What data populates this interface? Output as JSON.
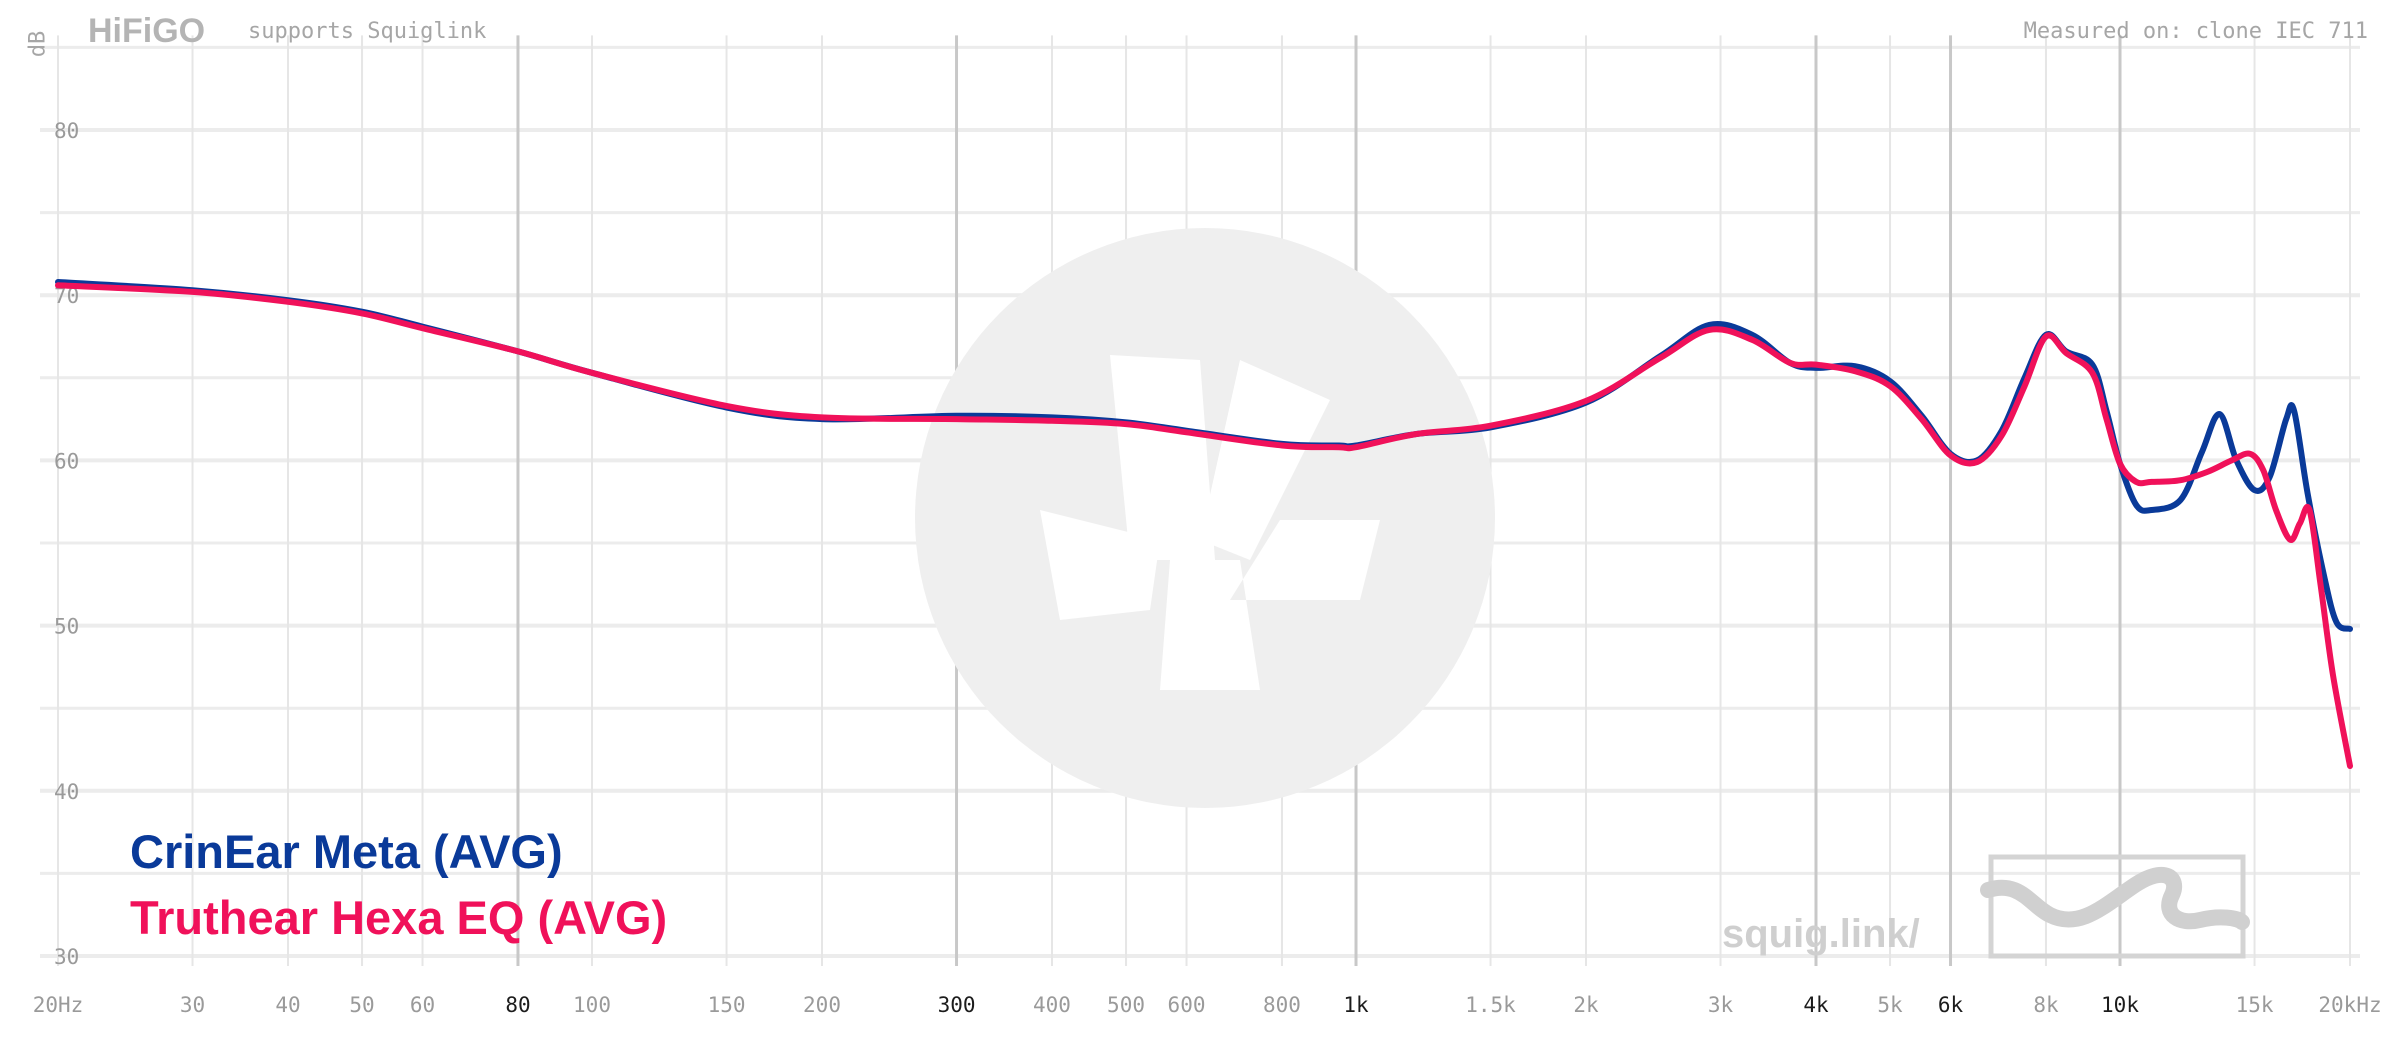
{
  "header": {
    "logo_text": "HiFiGO",
    "tagline": "supports Squiglink",
    "measured_on": "Measured on: clone IEC 711"
  },
  "watermark": {
    "text": "squig.link/"
  },
  "colors": {
    "series_1": "#0a3a99",
    "series_2": "#f0115a",
    "grid": "#e6e6e6",
    "grid_major": "#c8c8c8",
    "watermark": "#efefef"
  },
  "chart_data": {
    "type": "line",
    "x_scale": "log",
    "xlim": [
      20,
      20000
    ],
    "ylim": [
      30,
      85
    ],
    "ylabel": "dB",
    "grid": true,
    "legend_position": "bottom-left",
    "y_ticks": [
      {
        "value": 30,
        "label": "30"
      },
      {
        "value": 40,
        "label": "40"
      },
      {
        "value": 50,
        "label": "50"
      },
      {
        "value": 60,
        "label": "60"
      },
      {
        "value": 70,
        "label": "70"
      },
      {
        "value": 80,
        "label": "80"
      }
    ],
    "x_ticks": [
      {
        "value": 20,
        "label": "20Hz",
        "major": false
      },
      {
        "value": 30,
        "label": "30",
        "major": false
      },
      {
        "value": 40,
        "label": "40",
        "major": false
      },
      {
        "value": 50,
        "label": "50",
        "major": false
      },
      {
        "value": 60,
        "label": "60",
        "major": false
      },
      {
        "value": 80,
        "label": "80",
        "major": true
      },
      {
        "value": 100,
        "label": "100",
        "major": false
      },
      {
        "value": 150,
        "label": "150",
        "major": false
      },
      {
        "value": 200,
        "label": "200",
        "major": false
      },
      {
        "value": 300,
        "label": "300",
        "major": true
      },
      {
        "value": 400,
        "label": "400",
        "major": false
      },
      {
        "value": 500,
        "label": "500",
        "major": false
      },
      {
        "value": 600,
        "label": "600",
        "major": false
      },
      {
        "value": 800,
        "label": "800",
        "major": false
      },
      {
        "value": 1000,
        "label": "1k",
        "major": true
      },
      {
        "value": 1500,
        "label": "1.5k",
        "major": false
      },
      {
        "value": 2000,
        "label": "2k",
        "major": false
      },
      {
        "value": 3000,
        "label": "3k",
        "major": false
      },
      {
        "value": 4000,
        "label": "4k",
        "major": true
      },
      {
        "value": 5000,
        "label": "5k",
        "major": false
      },
      {
        "value": 6000,
        "label": "6k",
        "major": true
      },
      {
        "value": 8000,
        "label": "8k",
        "major": false
      },
      {
        "value": 10000,
        "label": "10k",
        "major": true
      },
      {
        "value": 15000,
        "label": "15k",
        "major": false
      },
      {
        "value": 20000,
        "label": "20kHz",
        "major": false
      }
    ],
    "series": [
      {
        "name": "CrinEar Meta (AVG)",
        "color": "#0a3a99",
        "points": [
          [
            20,
            70.8
          ],
          [
            30,
            70.3
          ],
          [
            40,
            69.7
          ],
          [
            50,
            69.0
          ],
          [
            60,
            68.1
          ],
          [
            80,
            66.6
          ],
          [
            100,
            65.3
          ],
          [
            150,
            63.2
          ],
          [
            200,
            62.5
          ],
          [
            300,
            62.7
          ],
          [
            400,
            62.6
          ],
          [
            500,
            62.3
          ],
          [
            600,
            61.8
          ],
          [
            800,
            61.0
          ],
          [
            950,
            60.9
          ],
          [
            1000,
            60.9
          ],
          [
            1200,
            61.6
          ],
          [
            1500,
            62.0
          ],
          [
            2000,
            63.5
          ],
          [
            2500,
            66.3
          ],
          [
            2900,
            68.2
          ],
          [
            3300,
            67.6
          ],
          [
            3700,
            65.9
          ],
          [
            4000,
            65.6
          ],
          [
            4500,
            65.7
          ],
          [
            5000,
            64.8
          ],
          [
            5500,
            62.7
          ],
          [
            6000,
            60.4
          ],
          [
            6500,
            60.0
          ],
          [
            7000,
            61.8
          ],
          [
            7500,
            65.0
          ],
          [
            8000,
            67.6
          ],
          [
            8500,
            66.6
          ],
          [
            9200,
            65.8
          ],
          [
            9600,
            63.0
          ],
          [
            10000,
            59.8
          ],
          [
            10500,
            57.3
          ],
          [
            11000,
            57.0
          ],
          [
            12000,
            57.6
          ],
          [
            12800,
            60.5
          ],
          [
            13500,
            62.8
          ],
          [
            14200,
            60.0
          ],
          [
            15000,
            58.2
          ],
          [
            15700,
            59.0
          ],
          [
            16500,
            62.5
          ],
          [
            16900,
            63.0
          ],
          [
            17600,
            58.0
          ],
          [
            18500,
            53.0
          ],
          [
            19200,
            50.2
          ],
          [
            20000,
            49.8
          ]
        ]
      },
      {
        "name": "Truthear Hexa EQ (AVG)",
        "color": "#f0115a",
        "points": [
          [
            20,
            70.6
          ],
          [
            30,
            70.2
          ],
          [
            40,
            69.6
          ],
          [
            50,
            68.9
          ],
          [
            60,
            68.0
          ],
          [
            80,
            66.6
          ],
          [
            100,
            65.3
          ],
          [
            150,
            63.3
          ],
          [
            200,
            62.6
          ],
          [
            300,
            62.5
          ],
          [
            400,
            62.4
          ],
          [
            500,
            62.2
          ],
          [
            600,
            61.7
          ],
          [
            800,
            60.9
          ],
          [
            950,
            60.8
          ],
          [
            1000,
            60.8
          ],
          [
            1200,
            61.6
          ],
          [
            1500,
            62.1
          ],
          [
            2000,
            63.6
          ],
          [
            2500,
            66.2
          ],
          [
            2900,
            67.9
          ],
          [
            3300,
            67.3
          ],
          [
            3700,
            65.9
          ],
          [
            4000,
            65.8
          ],
          [
            4500,
            65.4
          ],
          [
            5000,
            64.5
          ],
          [
            5500,
            62.5
          ],
          [
            6000,
            60.3
          ],
          [
            6500,
            59.9
          ],
          [
            7000,
            61.5
          ],
          [
            7500,
            64.5
          ],
          [
            8000,
            67.5
          ],
          [
            8500,
            66.5
          ],
          [
            9200,
            65.3
          ],
          [
            9600,
            62.5
          ],
          [
            10000,
            59.8
          ],
          [
            10500,
            58.7
          ],
          [
            11000,
            58.7
          ],
          [
            12000,
            58.8
          ],
          [
            13000,
            59.3
          ],
          [
            14000,
            60.0
          ],
          [
            14800,
            60.4
          ],
          [
            15400,
            59.4
          ],
          [
            16000,
            57.0
          ],
          [
            16700,
            55.2
          ],
          [
            17200,
            56.2
          ],
          [
            17700,
            57.0
          ],
          [
            18300,
            52.5
          ],
          [
            19000,
            47.0
          ],
          [
            20000,
            41.5
          ]
        ]
      }
    ]
  }
}
